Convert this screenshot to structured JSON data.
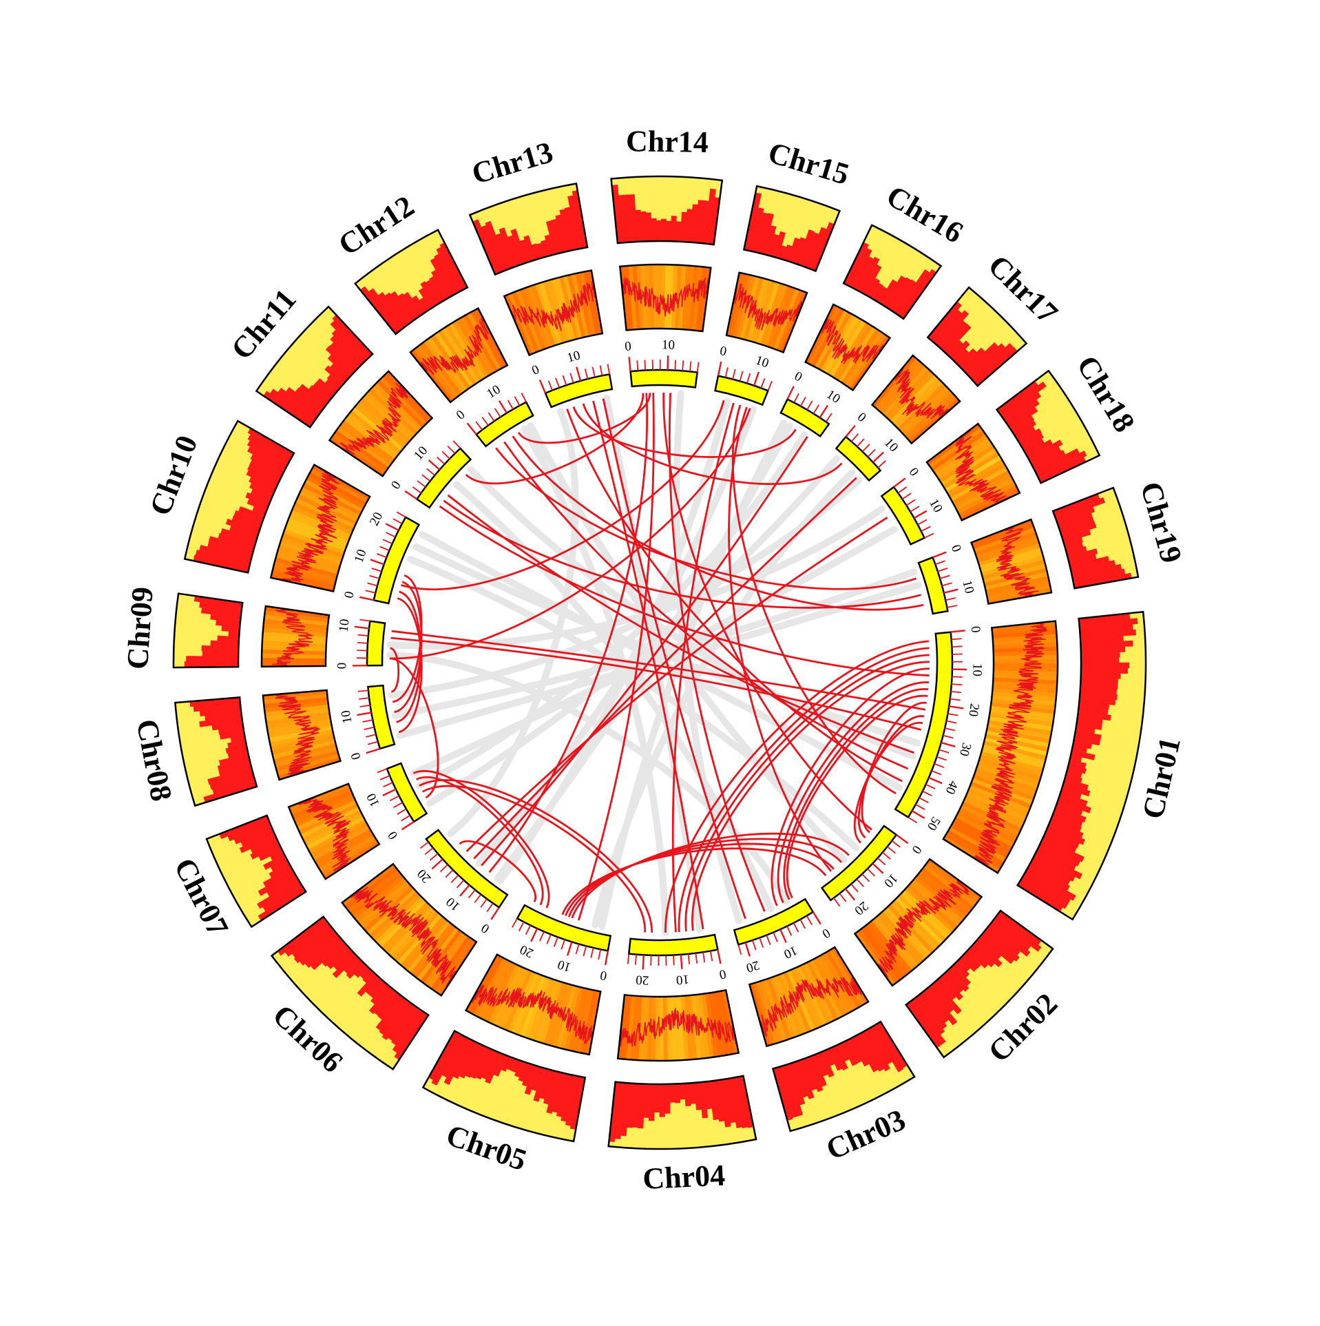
{
  "chart_data": {
    "type": "circos",
    "tick_step_mb": 2,
    "label_step_mb": 10,
    "colors": {
      "ideogram_fill": "#ffff00",
      "density_fill": "#ff1a1a",
      "density_background": "#ffef5a",
      "heatmap_low": "#ffee22",
      "heatmap_high": "#ff6a00",
      "heatmap_line": "#e8141c",
      "outline": "#000000",
      "tick": "#e8141c",
      "link_highlight": "#e8141c",
      "link_background": "#e6e6e6"
    },
    "chromosomes": [
      {
        "name": "Chr01",
        "length_mb": 52
      },
      {
        "name": "Chr02",
        "length_mb": 25
      },
      {
        "name": "Chr03",
        "length_mb": 22
      },
      {
        "name": "Chr04",
        "length_mb": 24
      },
      {
        "name": "Chr05",
        "length_mb": 26
      },
      {
        "name": "Chr06",
        "length_mb": 27
      },
      {
        "name": "Chr07",
        "length_mb": 16
      },
      {
        "name": "Chr08",
        "length_mb": 17
      },
      {
        "name": "Chr09",
        "length_mb": 12
      },
      {
        "name": "Chr10",
        "length_mb": 24
      },
      {
        "name": "Chr11",
        "length_mb": 18
      },
      {
        "name": "Chr12",
        "length_mb": 16
      },
      {
        "name": "Chr13",
        "length_mb": 18
      },
      {
        "name": "Chr14",
        "length_mb": 18
      },
      {
        "name": "Chr15",
        "length_mb": 14
      },
      {
        "name": "Chr16",
        "length_mb": 13
      },
      {
        "name": "Chr17",
        "length_mb": 13
      },
      {
        "name": "Chr18",
        "length_mb": 16
      },
      {
        "name": "Chr19",
        "length_mb": 15
      }
    ],
    "highlighted_links": [
      [
        "Chr14",
        4,
        "Chr06",
        8
      ],
      [
        "Chr14",
        6,
        "Chr05",
        10
      ],
      [
        "Chr14",
        3,
        "Chr11",
        14
      ],
      [
        "Chr14",
        5,
        "Chr12",
        10
      ],
      [
        "Chr13",
        6,
        "Chr16",
        6
      ],
      [
        "Chr13",
        9,
        "Chr17",
        4
      ],
      [
        "Chr13",
        12,
        "Chr04",
        3
      ],
      [
        "Chr13",
        15,
        "Chr03",
        18
      ],
      [
        "Chr15",
        3,
        "Chr10",
        6
      ],
      [
        "Chr15",
        6,
        "Chr04",
        11
      ],
      [
        "Chr15",
        10,
        "Chr02",
        20
      ],
      [
        "Chr15",
        11,
        "Chr09",
        2
      ],
      [
        "Chr12",
        2,
        "Chr19",
        4
      ],
      [
        "Chr12",
        5,
        "Chr01",
        40
      ],
      [
        "Chr12",
        8,
        "Chr19",
        12
      ],
      [
        "Chr11",
        2,
        "Chr01",
        12
      ],
      [
        "Chr11",
        4,
        "Chr19",
        9
      ],
      [
        "Chr11",
        6,
        "Chr01",
        35
      ],
      [
        "Chr10",
        2,
        "Chr08",
        3
      ],
      [
        "Chr10",
        4,
        "Chr08",
        6
      ],
      [
        "Chr10",
        7,
        "Chr08",
        9
      ],
      [
        "Chr10",
        9,
        "Chr08",
        12
      ],
      [
        "Chr09",
        2,
        "Chr07",
        4
      ],
      [
        "Chr09",
        5,
        "Chr08",
        15
      ],
      [
        "Chr09",
        8,
        "Chr01",
        28
      ],
      [
        "Chr09",
        10,
        "Chr01",
        22
      ],
      [
        "Chr07",
        6,
        "Chr04",
        20
      ],
      [
        "Chr07",
        8,
        "Chr04",
        18
      ],
      [
        "Chr07",
        10,
        "Chr05",
        22
      ],
      [
        "Chr07",
        12,
        "Chr05",
        20
      ],
      [
        "Chr06",
        20,
        "Chr05",
        24
      ],
      [
        "Chr06",
        17,
        "Chr18",
        6
      ],
      [
        "Chr06",
        14,
        "Chr17",
        10
      ],
      [
        "Chr06",
        11,
        "Chr16",
        10
      ],
      [
        "Chr05",
        15,
        "Chr02",
        22
      ],
      [
        "Chr05",
        14,
        "Chr02",
        19
      ],
      [
        "Chr05",
        13,
        "Chr02",
        16
      ],
      [
        "Chr05",
        12,
        "Chr02",
        13
      ],
      [
        "Chr04",
        14,
        "Chr01",
        2
      ],
      [
        "Chr04",
        10,
        "Chr01",
        4
      ],
      [
        "Chr04",
        8,
        "Chr01",
        6
      ],
      [
        "Chr04",
        6,
        "Chr01",
        8
      ],
      [
        "Chr03",
        8,
        "Chr01",
        10
      ],
      [
        "Chr03",
        6,
        "Chr01",
        14
      ],
      [
        "Chr03",
        4,
        "Chr01",
        16
      ],
      [
        "Chr03",
        3,
        "Chr01",
        18
      ],
      [
        "Chr02",
        4,
        "Chr01",
        20
      ],
      [
        "Chr02",
        6,
        "Chr01",
        24
      ],
      [
        "Chr02",
        8,
        "Chr01",
        26
      ],
      [
        "Chr14",
        9,
        "Chr02",
        3
      ],
      [
        "Chr14",
        11,
        "Chr03",
        12
      ],
      [
        "Chr13",
        4,
        "Chr01",
        44
      ],
      [
        "Chr15",
        8,
        "Chr01",
        48
      ]
    ],
    "background_links": [
      [
        "Chr12",
        12,
        "Chr04",
        14
      ],
      [
        "Chr11",
        10,
        "Chr03",
        10
      ],
      [
        "Chr16",
        4,
        "Chr06",
        5
      ],
      [
        "Chr17",
        8,
        "Chr05",
        5
      ],
      [
        "Chr18",
        10,
        "Chr07",
        12
      ],
      [
        "Chr19",
        6,
        "Chr08",
        2
      ],
      [
        "Chr10",
        14,
        "Chr02",
        10
      ],
      [
        "Chr10",
        18,
        "Chr01",
        32
      ],
      [
        "Chr09",
        3,
        "Chr03",
        5
      ],
      [
        "Chr08",
        8,
        "Chr19",
        2
      ],
      [
        "Chr07",
        2,
        "Chr17",
        2
      ],
      [
        "Chr06",
        4,
        "Chr15",
        4
      ],
      [
        "Chr06",
        24,
        "Chr13",
        2
      ],
      [
        "Chr05",
        3,
        "Chr16",
        2
      ],
      [
        "Chr04",
        4,
        "Chr13",
        16
      ],
      [
        "Chr03",
        20,
        "Chr14",
        14
      ],
      [
        "Chr02",
        15,
        "Chr12",
        14
      ],
      [
        "Chr01",
        36,
        "Chr11",
        16
      ],
      [
        "Chr01",
        46,
        "Chr10",
        22
      ],
      [
        "Chr18",
        3,
        "Chr09",
        6
      ],
      [
        "Chr17",
        11,
        "Chr08",
        14
      ],
      [
        "Chr16",
        9,
        "Chr07",
        8
      ],
      [
        "Chr15",
        12,
        "Chr06",
        12
      ]
    ]
  }
}
